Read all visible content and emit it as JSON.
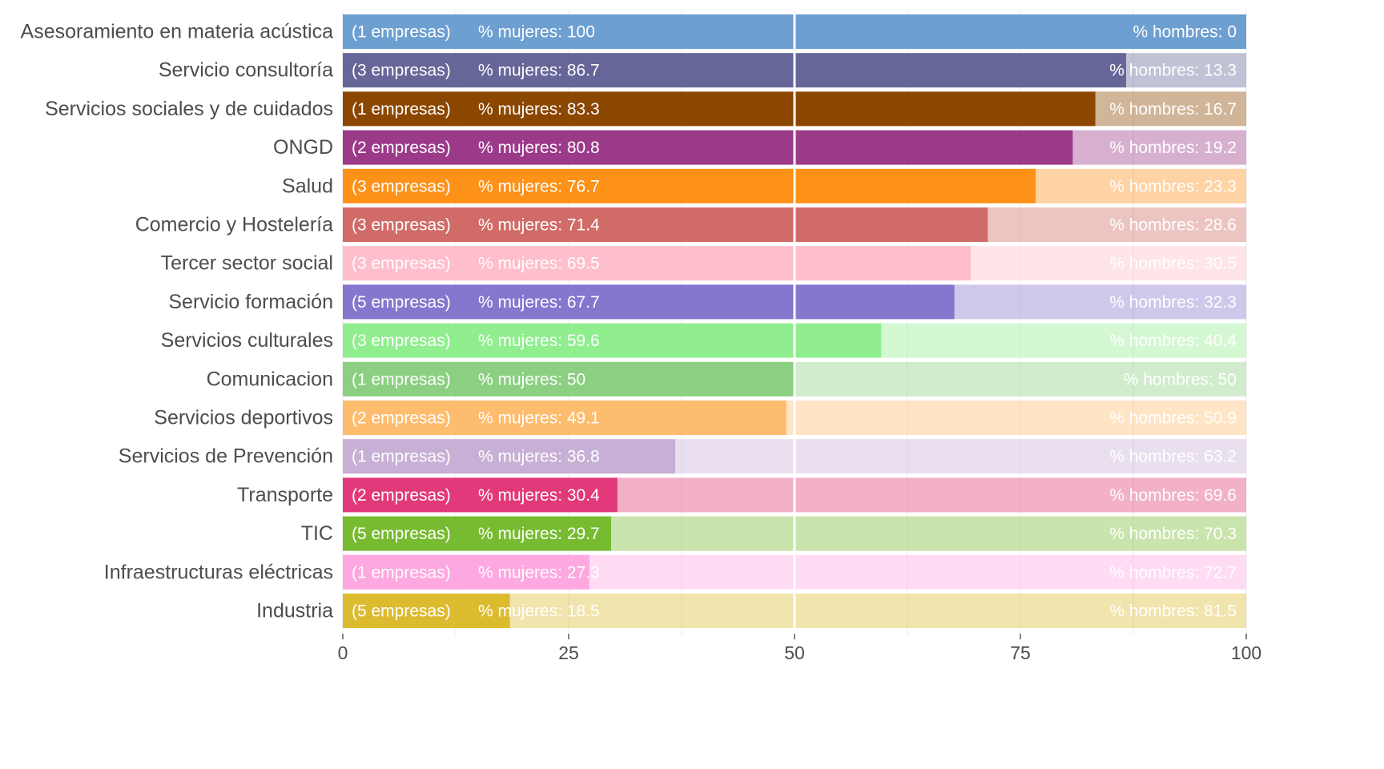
{
  "chart_data": {
    "type": "bar",
    "orientation": "horizontal",
    "stacked": true,
    "title": "",
    "xlabel": "",
    "ylabel": "",
    "xlim": [
      0,
      100
    ],
    "xticks": [
      0,
      25,
      50,
      75,
      100
    ],
    "grid": true,
    "legend": "none",
    "categories": [
      "Asesoramiento en materia acústica",
      "Servicio consultoría",
      "Servicios sociales y de cuidados",
      "ONGD",
      "Salud",
      "Comercio y Hostelería",
      "Tercer sector social",
      "Servicio formación",
      "Servicios culturales",
      "Comunicacion",
      "Servicios deportivos",
      "Servicios de Prevención",
      "Transporte",
      "TIC",
      "Infraestructuras eléctricas",
      "Industria"
    ],
    "company_labels": [
      "(1 empresas)",
      "(3 empresas)",
      "(1 empresas)",
      "(2 empresas)",
      "(3 empresas)",
      "(3 empresas)",
      "(3 empresas)",
      "(5 empresas)",
      "(3 empresas)",
      "(1 empresas)",
      "(2 empresas)",
      "(1 empresas)",
      "(2 empresas)",
      "(5 empresas)",
      "(1 empresas)",
      "(5 empresas)"
    ],
    "series": [
      {
        "label_prefix": "% mujeres: ",
        "values": [
          100,
          86.7,
          83.3,
          80.8,
          76.7,
          71.4,
          69.5,
          67.7,
          59.6,
          50,
          49.1,
          36.8,
          30.4,
          29.7,
          27.3,
          18.5
        ]
      },
      {
        "label_prefix": "% hombres: ",
        "values": [
          0,
          13.3,
          16.7,
          19.2,
          23.3,
          28.6,
          30.5,
          32.3,
          40.4,
          50,
          50.9,
          63.2,
          69.6,
          70.3,
          72.7,
          81.5
        ]
      }
    ],
    "colors": [
      "#6e9fd1",
      "#676699",
      "#8b4600",
      "#9c3a8a",
      "#fe9118",
      "#d06b67",
      "#ffbecb",
      "#8776cd",
      "#90ee8f",
      "#8ccf82",
      "#febc6e",
      "#c8afd5",
      "#e13979",
      "#77bb31",
      "#fea8e1",
      "#dcbb2f"
    ],
    "reference_line": 50
  }
}
